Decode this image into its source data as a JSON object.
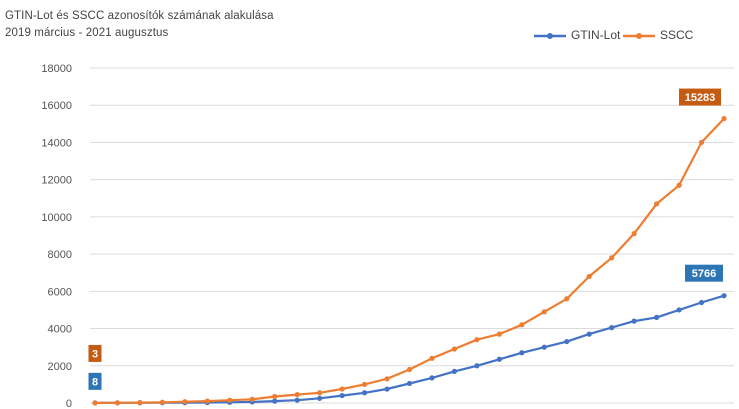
{
  "chart_data": {
    "type": "line",
    "title": "GTIN-Lot és SSCC azonosítók számának alakulása",
    "subtitle": "2019 március - 2021 augusztus",
    "xlabel": "",
    "ylabel": "",
    "ylim": [
      0,
      18000
    ],
    "yticks": [
      0,
      2000,
      4000,
      6000,
      8000,
      10000,
      12000,
      14000,
      16000,
      18000
    ],
    "grid": true,
    "legend_position": "top-right",
    "series": [
      {
        "name": "GTIN-Lot",
        "color": "#4472c4",
        "values": [
          8,
          10,
          12,
          15,
          20,
          25,
          40,
          60,
          100,
          150,
          250,
          400,
          550,
          750,
          1050,
          1350,
          1700,
          2000,
          2350,
          2700,
          3000,
          3300,
          3700,
          4050,
          4400,
          4600,
          5000,
          5400,
          5766
        ]
      },
      {
        "name": "SSCC",
        "color": "#ed7d31",
        "values": [
          3,
          10,
          20,
          40,
          70,
          100,
          150,
          200,
          350,
          450,
          550,
          750,
          1000,
          1300,
          1800,
          2400,
          2900,
          3400,
          3700,
          4200,
          4900,
          5600,
          6800,
          7800,
          9100,
          10700,
          11700,
          14000,
          15283
        ]
      }
    ],
    "callouts": [
      {
        "text": "3",
        "color": "#c55a11"
      },
      {
        "text": "8",
        "color": "#2e75b6"
      },
      {
        "text": "15283",
        "color": "#c55a11"
      },
      {
        "text": "5766",
        "color": "#2e75b6"
      }
    ]
  }
}
